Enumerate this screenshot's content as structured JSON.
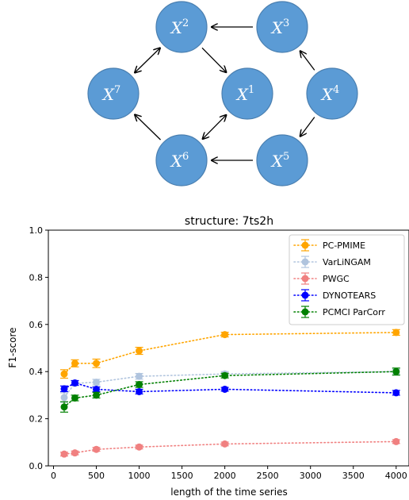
{
  "graph": {
    "nodes": [
      {
        "id": "X2",
        "base": "X",
        "sup": "2"
      },
      {
        "id": "X3",
        "base": "X",
        "sup": "3"
      },
      {
        "id": "X7",
        "base": "X",
        "sup": "7"
      },
      {
        "id": "X1",
        "base": "X",
        "sup": "1"
      },
      {
        "id": "X4",
        "base": "X",
        "sup": "4"
      },
      {
        "id": "X6",
        "base": "X",
        "sup": "6"
      },
      {
        "id": "X5",
        "base": "X",
        "sup": "5"
      }
    ],
    "edges": [
      {
        "from": "X3",
        "to": "X2",
        "bidirectional": false
      },
      {
        "from": "X2",
        "to": "X7",
        "bidirectional": true
      },
      {
        "from": "X2",
        "to": "X1",
        "bidirectional": false
      },
      {
        "from": "X4",
        "to": "X3",
        "bidirectional": false
      },
      {
        "from": "X6",
        "to": "X7",
        "bidirectional": false
      },
      {
        "from": "X1",
        "to": "X6",
        "bidirectional": true
      },
      {
        "from": "X4",
        "to": "X5",
        "bidirectional": false
      },
      {
        "from": "X5",
        "to": "X6",
        "bidirectional": false
      }
    ],
    "node_color": "#5b9bd5",
    "node_edge_color": "#4a7fb0"
  },
  "chart_data": {
    "type": "line",
    "title": "structure: 7ts2h",
    "xlabel": "length of the time series",
    "ylabel": "F1-score",
    "xlim": [
      -60,
      4150
    ],
    "ylim": [
      0.0,
      1.0
    ],
    "xticks": [
      0,
      500,
      1000,
      1500,
      2000,
      2500,
      3000,
      3500,
      4000
    ],
    "yticks": [
      0.0,
      0.2,
      0.4,
      0.6,
      0.8,
      1.0
    ],
    "xtick_labels": [
      "0",
      "500",
      "1000",
      "1500",
      "2000",
      "2500",
      "3000",
      "3500",
      "4000"
    ],
    "ytick_labels": [
      "0.0",
      "0.2",
      "0.4",
      "0.6",
      "0.8",
      "1.0"
    ],
    "grid": false,
    "legend_position": "top-right",
    "x": [
      125,
      250,
      500,
      1000,
      2000,
      4000
    ],
    "series": [
      {
        "name": "PC-PMIME",
        "color": "#ffa500",
        "values": [
          0.39,
          0.435,
          0.435,
          0.488,
          0.557,
          0.566
        ],
        "errors": [
          0.018,
          0.015,
          0.018,
          0.015,
          0.01,
          0.012
        ]
      },
      {
        "name": "VarLiNGAM",
        "color": "#b0c4de",
        "values": [
          0.29,
          0.35,
          0.355,
          0.38,
          0.39,
          0.4
        ],
        "errors": [
          0.02,
          0.01,
          0.012,
          0.012,
          0.01,
          0.01
        ]
      },
      {
        "name": "PWGC",
        "color": "#f08080",
        "values": [
          0.05,
          0.055,
          0.07,
          0.08,
          0.093,
          0.103
        ],
        "errors": [
          0.008,
          0.008,
          0.008,
          0.008,
          0.008,
          0.008
        ]
      },
      {
        "name": "DYNOTEARS",
        "color": "#0000ff",
        "values": [
          0.327,
          0.352,
          0.325,
          0.315,
          0.325,
          0.31
        ],
        "errors": [
          0.012,
          0.01,
          0.01,
          0.01,
          0.008,
          0.01
        ]
      },
      {
        "name": "PCMCI ParCorr",
        "color": "#008000",
        "values": [
          0.25,
          0.288,
          0.3,
          0.345,
          0.383,
          0.4
        ],
        "errors": [
          0.022,
          0.012,
          0.012,
          0.012,
          0.01,
          0.015
        ]
      }
    ]
  }
}
